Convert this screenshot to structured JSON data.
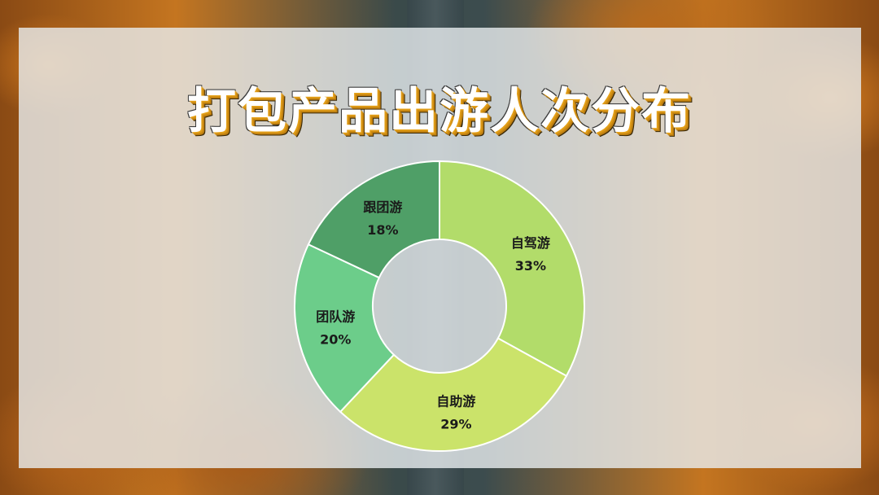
{
  "slide": {
    "title": "打包产品出游人次分布"
  },
  "chart_data": {
    "type": "pie",
    "donut": true,
    "categories": [
      "自驾游",
      "自助游",
      "团队游",
      "跟团游"
    ],
    "values": [
      33,
      29,
      20,
      18
    ],
    "labels": [
      "33%",
      "29%",
      "20%",
      "18%"
    ],
    "colors": [
      "#b2dc6a",
      "#cbe36a",
      "#6ccd8a",
      "#4f9f67"
    ],
    "legend": "none"
  }
}
